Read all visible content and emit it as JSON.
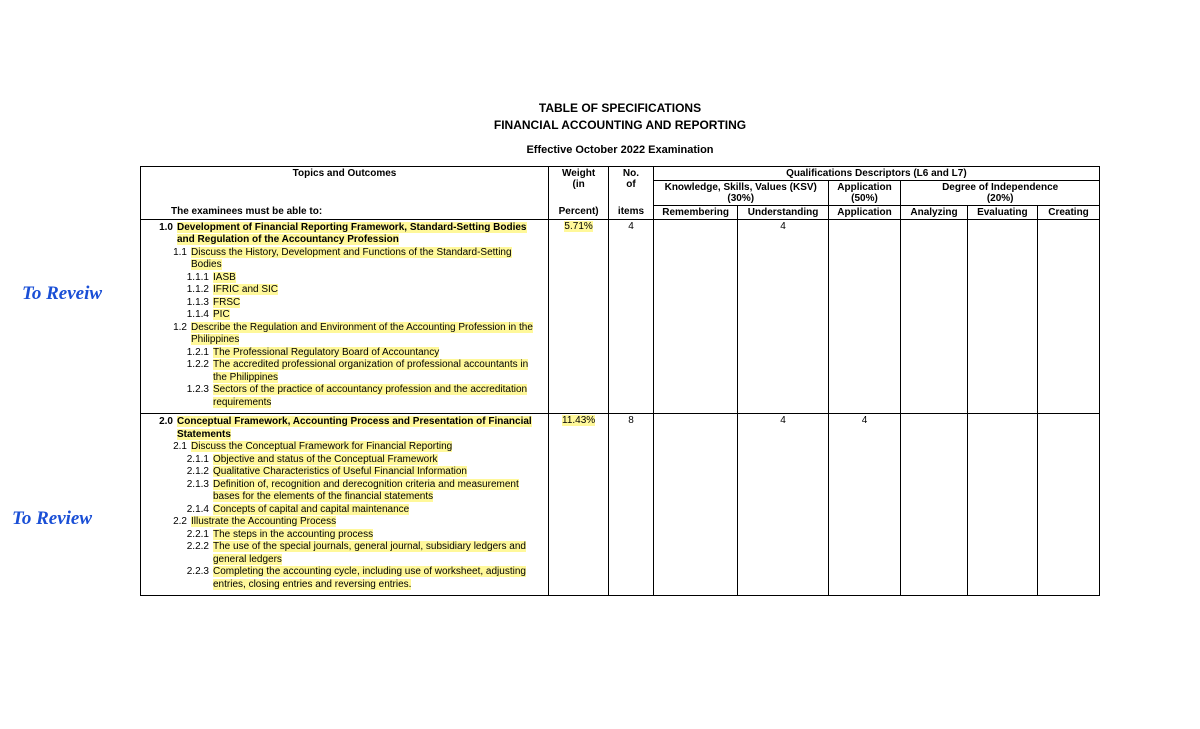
{
  "header": {
    "title1": "TABLE OF SPECIFICATIONS",
    "title2": "FINANCIAL ACCOUNTING AND REPORTING",
    "subtitle": "Effective October 2022 Examination"
  },
  "annotations": {
    "a1": "To Reveiw",
    "a2": "To Review"
  },
  "columns": {
    "topics": "Topics and Outcomes",
    "weight_l1": "Weight",
    "weight_l2": "(in",
    "weight_l3": "Percent)",
    "no_l1": "No.",
    "no_l2": "of",
    "no_l3": "items",
    "qual": "Qualifications Descriptors (L6 and L7)",
    "ksv_l1": "Knowledge, Skills, Values (KSV)",
    "ksv_l2": "(30%)",
    "app_l1": "Application",
    "app_l2": "(50%)",
    "deg_l1": "Degree of Independence",
    "deg_l2": "(20%)",
    "remembering": "Remembering",
    "understanding": "Understanding",
    "application": "Application",
    "analyzing": "Analyzing",
    "evaluating": "Evaluating",
    "creating": "Creating"
  },
  "intro": "The examinees must be able to:",
  "sections": [
    {
      "num": "1.0",
      "title": "Development of Financial Reporting Framework, Standard-Setting Bodies and Regulation of the Accountancy Profession",
      "weight": "5.71%",
      "items": "4",
      "understanding": "4",
      "application": "",
      "subs": [
        {
          "n": "1.1",
          "t": "Discuss the History, Development and Functions of the Standard-Setting Bodies",
          "hl": true,
          "subs": [
            {
              "n": "1.1.1",
              "t": "IASB",
              "hl": true
            },
            {
              "n": "1.1.2",
              "t": "IFRIC and SIC",
              "hl": true
            },
            {
              "n": "1.1.3",
              "t": "FRSC",
              "hl": true
            },
            {
              "n": "1.1.4",
              "t": "PIC",
              "hl": true
            }
          ]
        },
        {
          "n": "1.2",
          "t": "Describe the Regulation and Environment of the Accounting Profession in the Philippines",
          "hl": true,
          "subs": [
            {
              "n": "1.2.1",
              "t": "The Professional Regulatory Board of Accountancy",
              "hl": true
            },
            {
              "n": "1.2.2",
              "t": "The accredited professional organization of professional accountants in the Philippines",
              "hl": true
            },
            {
              "n": "1.2.3",
              "t": "Sectors of the practice of accountancy profession and the accreditation requirements",
              "hl": true
            }
          ]
        }
      ]
    },
    {
      "num": "2.0",
      "title": "Conceptual Framework, Accounting Process and Presentation of Financial Statements",
      "weight": "11.43%",
      "items": "8",
      "understanding": "4",
      "application": "4",
      "subs": [
        {
          "n": "2.1",
          "t": "Discuss the Conceptual Framework for Financial Reporting",
          "hl": true,
          "subs": [
            {
              "n": "2.1.1",
              "t": "Objective and status of the Conceptual Framework",
              "hl": true
            },
            {
              "n": "2.1.2",
              "t": "Qualitative Characteristics of Useful Financial Information",
              "hl": true
            },
            {
              "n": "2.1.3",
              "t": "Definition of, recognition and derecognition criteria and measurement bases for the elements of the financial statements",
              "hl": true
            },
            {
              "n": "2.1.4",
              "t": "Concepts of capital and capital maintenance",
              "hl": true
            }
          ]
        },
        {
          "n": "2.2",
          "t": "Illustrate the Accounting Process",
          "hl": true,
          "subs": [
            {
              "n": "2.2.1",
              "t": "The steps in the accounting process",
              "hl": true
            },
            {
              "n": "2.2.2",
              "t": "The use of the special journals, general journal, subsidiary   ledgers and general ledgers",
              "hl": true
            },
            {
              "n": "2.2.3",
              "t": "Completing the accounting cycle, including use of worksheet, adjusting entries, closing entries and reversing entries.",
              "hl": true
            }
          ]
        }
      ]
    }
  ],
  "colors": {
    "highlight": "#fff89a",
    "annotation": "#1a4fd6",
    "border": "#000000",
    "background": "#ffffff"
  }
}
